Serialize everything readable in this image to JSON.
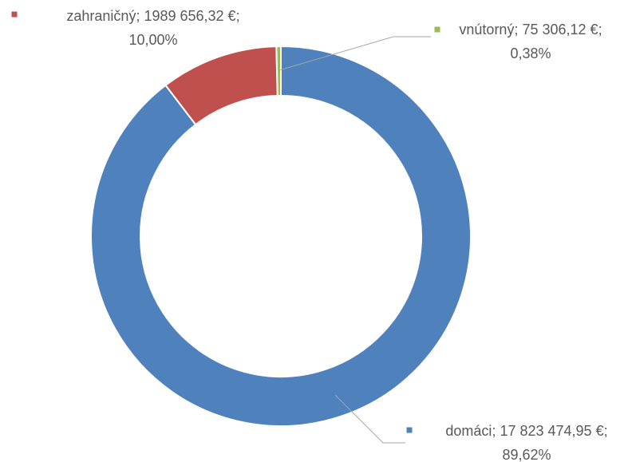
{
  "chart_data": {
    "type": "donut",
    "categories": [
      "domáci",
      "zahraničný",
      "vnútorný"
    ],
    "values": [
      17823474.95,
      1989656.32,
      75306.12
    ],
    "value_labels": [
      "17 823 474,95 €",
      "1989 656,32 €",
      "75 306,12 €"
    ],
    "percents": [
      89.62,
      10.0,
      0.38
    ],
    "percent_labels": [
      "89,62%",
      "10,00%",
      "0,38%"
    ],
    "label_separator": ";",
    "colors": [
      "#4f81bd",
      "#c0504d",
      "#9bbb59"
    ]
  }
}
